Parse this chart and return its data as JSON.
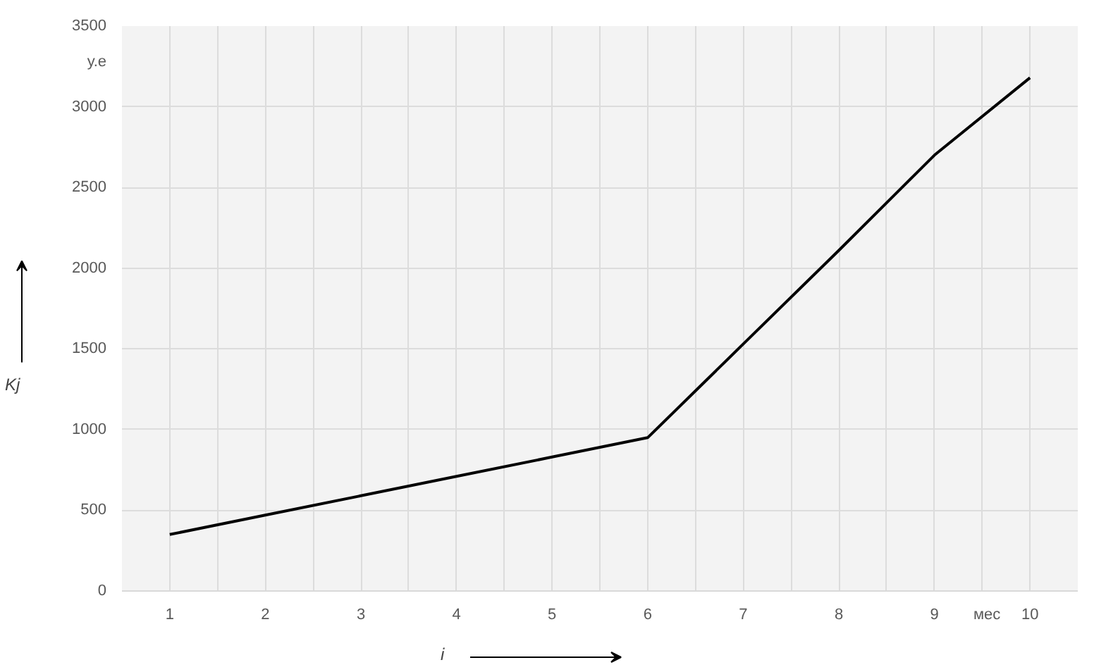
{
  "chart_data": {
    "type": "line",
    "xlabel": "i",
    "ylabel": "Kj",
    "annotations": [
      "у.е",
      "мес"
    ],
    "categories": [
      "1",
      "2",
      "3",
      "4",
      "5",
      "6",
      "7",
      "8",
      "9",
      "10"
    ],
    "series": [
      {
        "color": "#000000",
        "values": [
          350,
          470,
          590,
          710,
          830,
          950,
          1530,
          2110,
          2700,
          3180
        ]
      }
    ],
    "ylim": [
      0,
      3500
    ],
    "yticks": [
      0,
      500,
      1000,
      1500,
      2000,
      2500,
      3000,
      3500
    ],
    "grid": true
  }
}
